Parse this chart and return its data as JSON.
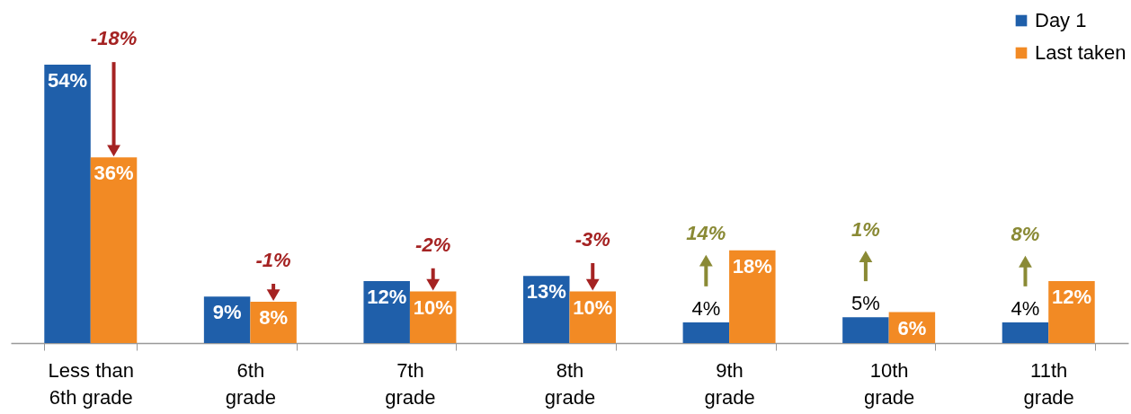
{
  "chart_data": {
    "type": "bar",
    "categories": [
      "Less than\n6th grade",
      "6th\ngrade",
      "7th\ngrade",
      "8th\ngrade",
      "9th\ngrade",
      "10th\ngrade",
      "11th\ngrade"
    ],
    "series": [
      {
        "name": "Day 1",
        "color": "#1f5faa",
        "values": [
          54,
          9,
          12,
          13,
          4,
          5,
          4
        ],
        "value_labels": [
          "54%",
          "9%",
          "12%",
          "13%",
          "4%",
          "5%",
          "4%"
        ]
      },
      {
        "name": "Last taken",
        "color": "#f28a24",
        "values": [
          36,
          8,
          10,
          10,
          18,
          6,
          12
        ],
        "value_labels": [
          "36%",
          "8%",
          "10%",
          "10%",
          "18%",
          "6%",
          "12%"
        ]
      }
    ],
    "tick_labels": "x",
    "legend": "top right",
    "annotations": [
      "-18%",
      "-1%",
      "-2%",
      "-3%",
      "14%",
      "1%",
      "8%"
    ]
  }
}
